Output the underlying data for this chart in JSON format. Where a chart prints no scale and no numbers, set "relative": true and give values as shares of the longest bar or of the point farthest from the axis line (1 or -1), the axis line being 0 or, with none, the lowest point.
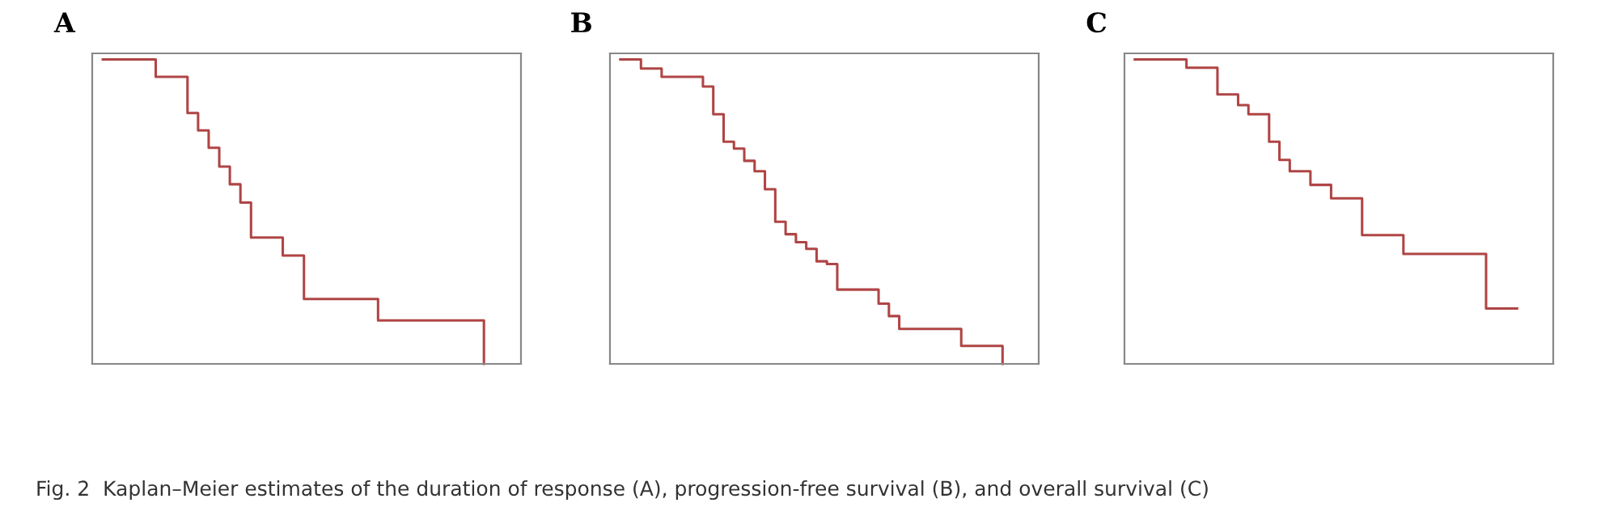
{
  "chart_data": [
    {
      "type": "step",
      "title": "A",
      "relative": true,
      "categories": [
        null,
        null,
        null,
        null,
        null,
        null,
        null,
        null,
        null,
        null,
        null,
        null,
        null,
        null,
        null,
        null,
        null,
        null,
        null,
        null,
        null,
        null,
        null,
        null,
        null,
        null,
        null,
        null,
        null,
        null,
        null,
        null,
        null,
        null,
        null,
        null,
        null
      ],
      "series": [
        {
          "color": "#b04545",
          "values": [
            1,
            1,
            1,
            1,
            1,
            0.943,
            0.943,
            0.943,
            0.824,
            0.767,
            0.71,
            0.648,
            0.59,
            0.53,
            0.415,
            0.415,
            0.415,
            0.356,
            0.356,
            0.213,
            0.213,
            0.213,
            0.213,
            0.213,
            0.213,
            0.213,
            0.143,
            0.143,
            0.143,
            0.143,
            0.143,
            0.143,
            0.143,
            0.143,
            0.143,
            0.143,
            0
          ]
        }
      ],
      "annotations": [
        "Fig. 2  Kaplan–Meier estimates of the duration of response (A), progression-free survival (B), and overall survival (C)"
      ]
    },
    {
      "type": "step",
      "title": "B",
      "relative": true,
      "categories": [
        null,
        null,
        null,
        null,
        null,
        null,
        null,
        null,
        null,
        null,
        null,
        null,
        null,
        null,
        null,
        null,
        null,
        null,
        null,
        null,
        null,
        null,
        null,
        null,
        null,
        null,
        null,
        null,
        null,
        null,
        null,
        null,
        null,
        null,
        null,
        null,
        null,
        null
      ],
      "series": [
        {
          "color": "#b04545",
          "values": [
            1,
            1,
            0.97,
            0.97,
            0.943,
            0.943,
            0.943,
            0.943,
            0.911,
            0.82,
            0.73,
            0.707,
            0.667,
            0.633,
            0.574,
            0.467,
            0.426,
            0.4,
            0.378,
            0.337,
            0.328,
            0.244,
            0.244,
            0.244,
            0.244,
            0.198,
            0.157,
            0.115,
            0.115,
            0.115,
            0.115,
            0.115,
            0.115,
            0.059,
            0.059,
            0.059,
            0.059,
            0
          ]
        }
      ]
    },
    {
      "type": "step",
      "title": "C",
      "relative": true,
      "categories": [
        null,
        null,
        null,
        null,
        null,
        null,
        null,
        null,
        null,
        null,
        null,
        null,
        null,
        null,
        null,
        null,
        null,
        null,
        null,
        null,
        null,
        null,
        null,
        null,
        null,
        null,
        null,
        null,
        null,
        null,
        null,
        null,
        null,
        null,
        null,
        null,
        null,
        null
      ],
      "series": [
        {
          "color": "#b04545",
          "values": [
            1,
            1,
            1,
            1,
            1,
            0.973,
            0.973,
            0.973,
            0.885,
            0.885,
            0.85,
            0.82,
            0.82,
            0.73,
            0.67,
            0.633,
            0.633,
            0.588,
            0.588,
            0.544,
            0.544,
            0.544,
            0.423,
            0.423,
            0.423,
            0.423,
            0.361,
            0.361,
            0.361,
            0.361,
            0.361,
            0.361,
            0.361,
            0.361,
            0.182,
            0.182,
            0.182,
            0.182
          ]
        }
      ]
    }
  ]
}
